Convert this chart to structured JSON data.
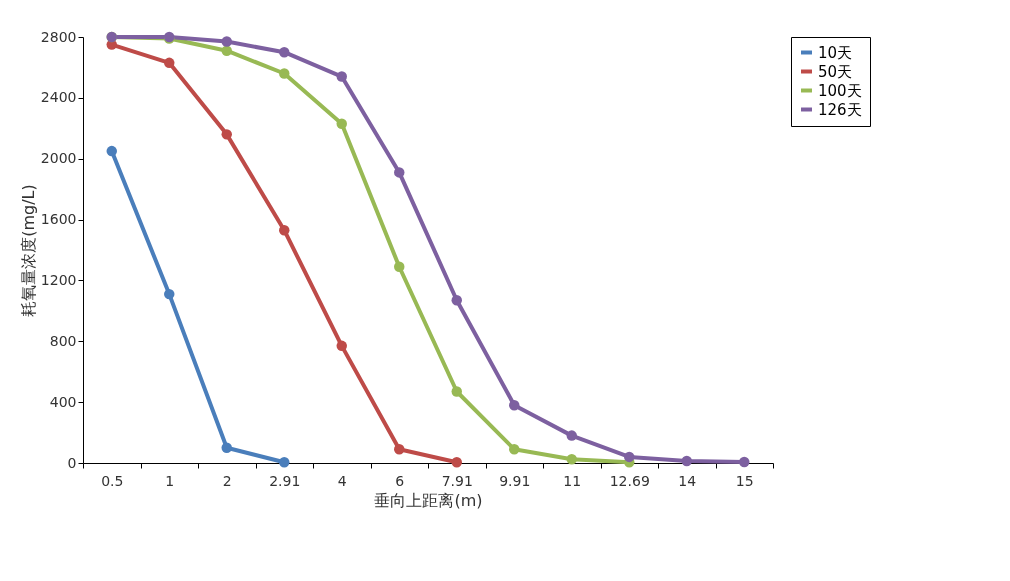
{
  "chart_data": {
    "type": "line",
    "xlabel": "垂向上距离(m)",
    "ylabel": "耗氧量浓度(mg/L)",
    "categories": [
      "0.5",
      "1",
      "2",
      "2.91",
      "4",
      "6",
      "7.91",
      "9.91",
      "11",
      "12.69",
      "14",
      "15"
    ],
    "series": [
      {
        "name": "10天",
        "color": "#4a7ebb",
        "values": [
          2050,
          1110,
          100,
          5,
          null,
          null,
          null,
          null,
          null,
          null,
          null,
          null
        ]
      },
      {
        "name": "50天",
        "color": "#be4b48",
        "values": [
          2750,
          2630,
          2160,
          1530,
          770,
          90,
          5,
          null,
          null,
          null,
          null,
          null
        ]
      },
      {
        "name": "100天",
        "color": "#98b954",
        "values": [
          2800,
          2790,
          2710,
          2560,
          2230,
          1290,
          470,
          90,
          25,
          5,
          null,
          null
        ]
      },
      {
        "name": "126天",
        "color": "#7d60a0",
        "values": [
          2800,
          2800,
          2770,
          2700,
          2540,
          1910,
          1070,
          380,
          180,
          40,
          13,
          7
        ]
      }
    ],
    "ylim": [
      0,
      2800
    ],
    "yticks": [
      0,
      400,
      800,
      1200,
      1600,
      2000,
      2400,
      2800
    ],
    "grid": false,
    "legend": "right",
    "marker": "circle",
    "line_style": "solid"
  }
}
